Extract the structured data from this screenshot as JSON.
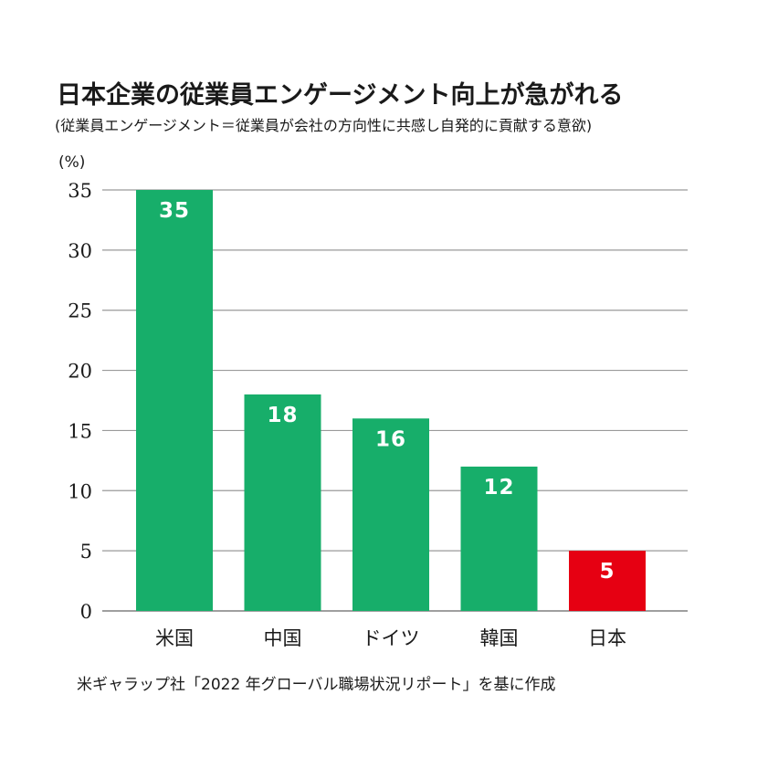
{
  "title": "日本企業の従業員エンゲージメント向上が急がれる",
  "subtitle": "(従業員エンゲージメント＝従業員が会社の方向性に共感し自発的に貢献する意欲)",
  "source": "米ギャラップ社「2022 年グローバル職場状況リポート」を基に作成",
  "colors": {
    "bar": "#17ae6a",
    "highlight": "#e60012",
    "grid": "#9a9a9a",
    "text": "#1a1a1a"
  },
  "chart_data": {
    "type": "bar",
    "title": "日本企業の従業員エンゲージメント向上が急がれる",
    "ylabel": "(%)",
    "xlabel": "",
    "categories": [
      "米国",
      "中国",
      "ドイツ",
      "韓国",
      "日本"
    ],
    "values": [
      35,
      18,
      16,
      12,
      5
    ],
    "data_labels": [
      "35",
      "18",
      "16",
      "12",
      "5"
    ],
    "highlight_category": "日本",
    "ylim": [
      0,
      35
    ],
    "yticks": [
      0,
      5,
      10,
      15,
      20,
      25,
      30,
      35
    ],
    "grid": true,
    "legend": "none"
  }
}
